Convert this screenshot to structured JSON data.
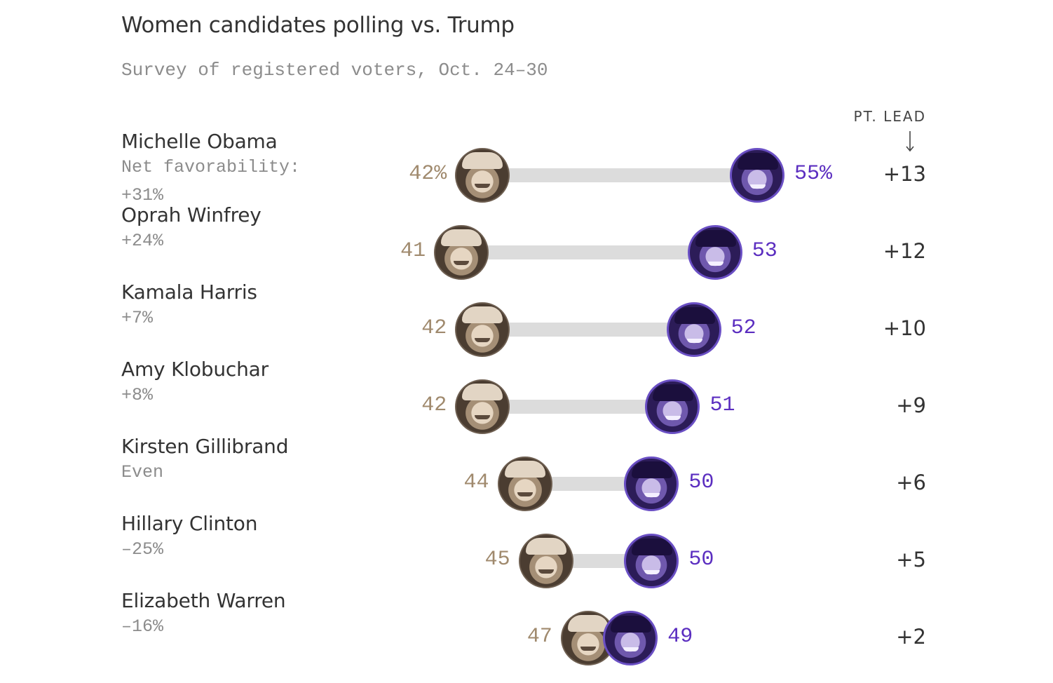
{
  "title": "Women candidates polling vs. Trump",
  "subtitle": "Survey of registered voters, Oct. 24–30",
  "lead_header": "PT. LEAD",
  "colors": {
    "trump": "#a08a6e",
    "candidate": "#5b2ec0",
    "track": "#dcdcdc"
  },
  "chart_data": {
    "type": "dumbbell",
    "title": "Women candidates polling vs. Trump",
    "subtitle": "Survey of registered voters, Oct. 24–30",
    "series": [
      {
        "name": "Trump",
        "values": [
          42,
          41,
          42,
          42,
          44,
          45,
          47
        ]
      },
      {
        "name": "Candidate",
        "values": [
          55,
          53,
          52,
          51,
          50,
          50,
          49
        ]
      }
    ],
    "rows": [
      {
        "name": "Michelle Obama",
        "fav_label": "Net favorability:",
        "fav": "+31%",
        "trump": 42,
        "candidate": 55,
        "trump_label": "42%",
        "candidate_label": "55%",
        "lead": "+13"
      },
      {
        "name": "Oprah Winfrey",
        "fav_label": "",
        "fav": "+24%",
        "trump": 41,
        "candidate": 53,
        "trump_label": "41",
        "candidate_label": "53",
        "lead": "+12"
      },
      {
        "name": "Kamala Harris",
        "fav_label": "",
        "fav": "+7%",
        "trump": 42,
        "candidate": 52,
        "trump_label": "42",
        "candidate_label": "52",
        "lead": "+10"
      },
      {
        "name": "Amy Klobuchar",
        "fav_label": "",
        "fav": "+8%",
        "trump": 42,
        "candidate": 51,
        "trump_label": "42",
        "candidate_label": "51",
        "lead": "+9"
      },
      {
        "name": "Kirsten Gillibrand",
        "fav_label": "",
        "fav": "Even",
        "trump": 44,
        "candidate": 50,
        "trump_label": "44",
        "candidate_label": "50",
        "lead": "+6"
      },
      {
        "name": "Hillary Clinton",
        "fav_label": "",
        "fav": "–25%",
        "trump": 45,
        "candidate": 50,
        "trump_label": "45",
        "candidate_label": "50",
        "lead": "+5"
      },
      {
        "name": "Elizabeth Warren",
        "fav_label": "",
        "fav": "–16%",
        "trump": 47,
        "candidate": 49,
        "trump_label": "47",
        "candidate_label": "49",
        "lead": "+2"
      }
    ]
  }
}
